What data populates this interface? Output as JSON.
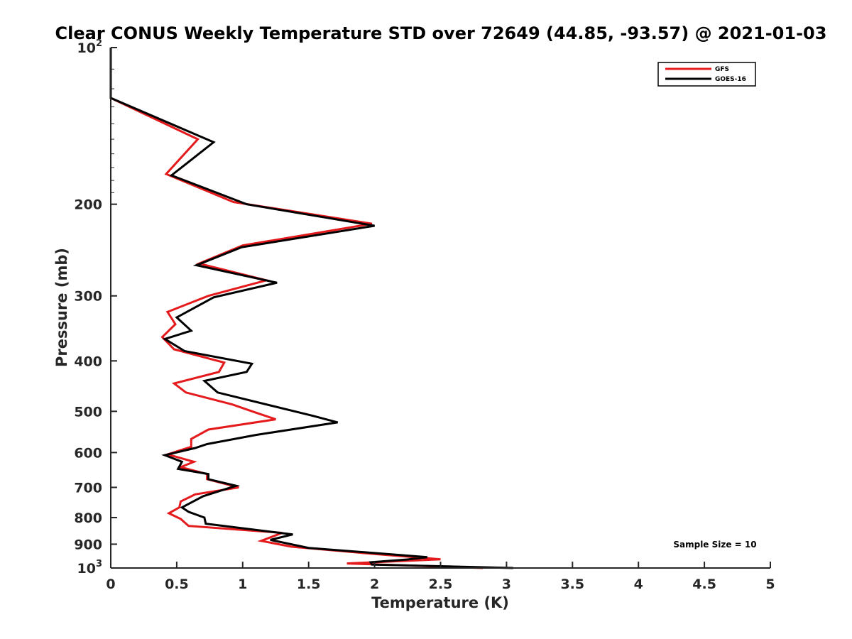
{
  "chart_data": {
    "type": "line",
    "title": "Clear CONUS Weekly Temperature STD over 72649 (44.85, -93.57) @ 2021-01-03",
    "xlabel": "Temperature (K)",
    "ylabel": "Pressure (mb)",
    "xlim": [
      0,
      5
    ],
    "ylim": [
      100,
      1000
    ],
    "yscale": "log",
    "y_reversed": true,
    "x_ticks": [
      "0",
      "0.5",
      "1",
      "1.5",
      "2",
      "2.5",
      "3",
      "3.5",
      "4",
      "4.5",
      "5"
    ],
    "y_ticks": [
      {
        "value": 100,
        "label": "10",
        "sup": "2"
      },
      {
        "value": 200,
        "label": "200"
      },
      {
        "value": 300,
        "label": "300"
      },
      {
        "value": 400,
        "label": "400"
      },
      {
        "value": 500,
        "label": "500"
      },
      {
        "value": 600,
        "label": "600"
      },
      {
        "value": 700,
        "label": "700"
      },
      {
        "value": 800,
        "label": "800"
      },
      {
        "value": 900,
        "label": "900"
      },
      {
        "value": 1000,
        "label": "10",
        "sup": "3"
      }
    ],
    "grid": false,
    "legend_position": "top-right",
    "annotation": "Sample Size = 10",
    "series": [
      {
        "name": "GFS",
        "color": "#e41a1c",
        "points": [
          [
            0,
            100
          ],
          [
            0,
            125
          ],
          [
            0.66,
            150
          ],
          [
            0.42,
            175
          ],
          [
            0.93,
            198
          ],
          [
            1.98,
            218
          ],
          [
            1.0,
            240
          ],
          [
            0.67,
            260
          ],
          [
            1.18,
            280
          ],
          [
            0.74,
            300
          ],
          [
            0.43,
            322
          ],
          [
            0.49,
            340
          ],
          [
            0.39,
            360
          ],
          [
            0.48,
            380
          ],
          [
            0.86,
            403
          ],
          [
            0.82,
            420
          ],
          [
            0.48,
            442
          ],
          [
            0.57,
            460
          ],
          [
            0.92,
            485
          ],
          [
            1.1,
            503
          ],
          [
            1.25,
            518
          ],
          [
            0.74,
            542
          ],
          [
            0.61,
            565
          ],
          [
            0.61,
            585
          ],
          [
            0.43,
            605
          ],
          [
            0.63,
            625
          ],
          [
            0.53,
            640
          ],
          [
            0.73,
            660
          ],
          [
            0.73,
            675
          ],
          [
            0.97,
            700
          ],
          [
            0.64,
            722
          ],
          [
            0.53,
            745
          ],
          [
            0.52,
            765
          ],
          [
            0.44,
            785
          ],
          [
            0.53,
            805
          ],
          [
            0.59,
            830
          ],
          [
            1.3,
            856
          ],
          [
            1.14,
            887
          ],
          [
            1.37,
            910
          ],
          [
            2.0,
            940
          ],
          [
            2.5,
            962
          ],
          [
            1.79,
            980
          ],
          [
            2.82,
            1000
          ]
        ]
      },
      {
        "name": "GOES-16",
        "color": "#000000",
        "points": [
          [
            0,
            100
          ],
          [
            0,
            125
          ],
          [
            0.78,
            152
          ],
          [
            0.46,
            176
          ],
          [
            1.03,
            200
          ],
          [
            2.0,
            220
          ],
          [
            0.99,
            242
          ],
          [
            0.65,
            262
          ],
          [
            1.26,
            283
          ],
          [
            0.78,
            302
          ],
          [
            0.5,
            330
          ],
          [
            0.61,
            350
          ],
          [
            0.41,
            363
          ],
          [
            0.56,
            383
          ],
          [
            1.07,
            405
          ],
          [
            1.03,
            420
          ],
          [
            0.71,
            437
          ],
          [
            0.81,
            460
          ],
          [
            1.53,
            510
          ],
          [
            1.72,
            525
          ],
          [
            1.1,
            555
          ],
          [
            0.73,
            578
          ],
          [
            0.64,
            588
          ],
          [
            0.41,
            607
          ],
          [
            0.54,
            625
          ],
          [
            0.51,
            645
          ],
          [
            0.74,
            660
          ],
          [
            0.74,
            675
          ],
          [
            0.95,
            695
          ],
          [
            0.7,
            728
          ],
          [
            0.54,
            765
          ],
          [
            0.59,
            780
          ],
          [
            0.71,
            800
          ],
          [
            0.72,
            822
          ],
          [
            1.38,
            862
          ],
          [
            1.21,
            883
          ],
          [
            1.5,
            915
          ],
          [
            2.4,
            953
          ],
          [
            2.25,
            963
          ],
          [
            1.97,
            975
          ],
          [
            1.98,
            985
          ],
          [
            3.05,
            1000
          ]
        ]
      }
    ]
  }
}
